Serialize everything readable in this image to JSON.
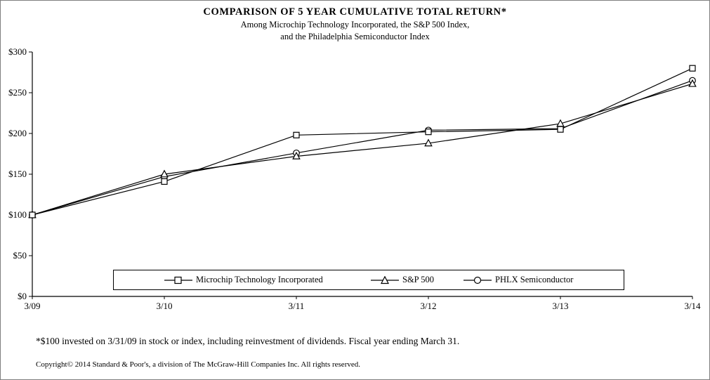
{
  "page": {
    "title": "COMPARISON OF 5 YEAR CUMULATIVE  TOTAL RETURN*",
    "subtitle_line1": "Among Microchip Technology Incorporated, the S&P 500 Index,",
    "subtitle_line2": "and the Philadelphia Semiconductor Index",
    "footnote": "*$100 invested on 3/31/09 in stock or index, including reinvestment of dividends.  Fiscal year ending March 31.",
    "copyright": "Copyright© 2014 Standard & Poor's, a division of The McGraw-Hill Companies Inc. All rights reserved."
  },
  "chart_data": {
    "type": "line",
    "title": "COMPARISON OF 5 YEAR CUMULATIVE TOTAL RETURN*",
    "x": [
      "3/09",
      "3/10",
      "3/11",
      "3/12",
      "3/13",
      "3/14"
    ],
    "xlabel": "",
    "ylabel": "",
    "ylim": [
      0,
      300
    ],
    "y_ticks": [
      0,
      50,
      100,
      150,
      200,
      250,
      300
    ],
    "y_tick_labels": [
      "$0",
      "$50",
      "$100",
      "$150",
      "$200",
      "$250",
      "$300"
    ],
    "grid": false,
    "legend_position": "bottom-inside",
    "line_color": "#000000",
    "marker_fill": "#ffffff",
    "series": [
      {
        "name": "Microchip Technology Incorporated",
        "marker": "square",
        "color": "#000000",
        "values": [
          100,
          141,
          198,
          202,
          205,
          280
        ]
      },
      {
        "name": "S&P 500",
        "marker": "triangle",
        "color": "#000000",
        "values": [
          100,
          150,
          172,
          188,
          212,
          261
        ]
      },
      {
        "name": "PHLX Semiconductor",
        "marker": "circle",
        "color": "#000000",
        "values": [
          100,
          147,
          176,
          204,
          206,
          265
        ]
      }
    ]
  }
}
